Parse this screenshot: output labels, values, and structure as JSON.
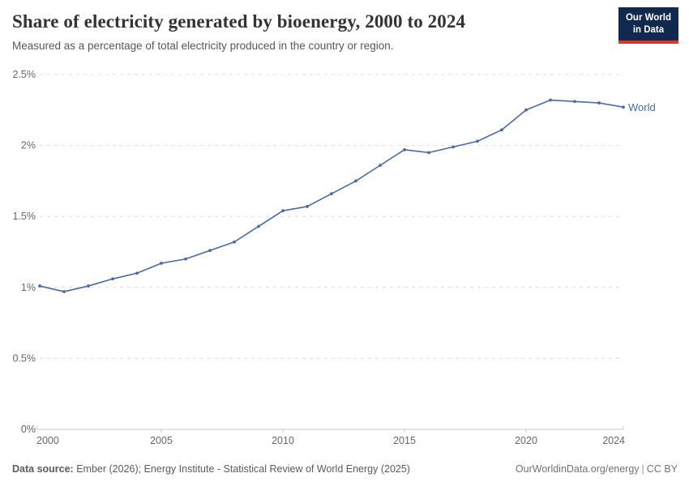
{
  "header": {
    "title": "Share of electricity generated by bioenergy, 2000 to 2024",
    "subtitle": "Measured as a percentage of total electricity produced in the country or region.",
    "logo": {
      "line1": "Our World",
      "line2": "in Data"
    }
  },
  "chart_data": {
    "type": "line",
    "title": "Share of electricity generated by bioenergy, 2000 to 2024",
    "xlabel": "",
    "ylabel": "",
    "ylim": [
      0,
      2.5
    ],
    "grid": "horizontal-dashed",
    "legend_position": "end-of-line",
    "x": [
      2000,
      2001,
      2002,
      2003,
      2004,
      2005,
      2006,
      2007,
      2008,
      2009,
      2010,
      2011,
      2012,
      2013,
      2014,
      2015,
      2016,
      2017,
      2018,
      2019,
      2020,
      2021,
      2022,
      2023,
      2024
    ],
    "series": [
      {
        "name": "World",
        "color": "#4c6a9e",
        "values": [
          1.01,
          0.97,
          1.01,
          1.06,
          1.1,
          1.17,
          1.2,
          1.26,
          1.32,
          1.43,
          1.54,
          1.57,
          1.66,
          1.75,
          1.86,
          1.97,
          1.95,
          1.99,
          2.03,
          2.11,
          2.25,
          2.32,
          2.31,
          2.3,
          2.27
        ]
      }
    ],
    "yticks": [
      {
        "value": 0,
        "label": "0%"
      },
      {
        "value": 0.5,
        "label": "0.5%"
      },
      {
        "value": 1,
        "label": "1%"
      },
      {
        "value": 1.5,
        "label": "1.5%"
      },
      {
        "value": 2,
        "label": "2%"
      },
      {
        "value": 2.5,
        "label": "2.5%"
      }
    ],
    "xticks": [
      2000,
      2005,
      2010,
      2015,
      2020,
      2024
    ]
  },
  "theme": {
    "line_color": "#4c6a9e",
    "grid_color": "#dedede",
    "axis_color": "#c8c8c8",
    "tick_text_color": "#666666",
    "logo_navy": "#12294f",
    "logo_red": "#dc352c"
  },
  "footer": {
    "datasource_label": "Data source:",
    "datasource_text": " Ember (2026); Energy Institute - Statistical Review of World Energy (2025)",
    "link": "OurWorldinData.org/energy",
    "separator": "|",
    "license": "CC BY"
  }
}
